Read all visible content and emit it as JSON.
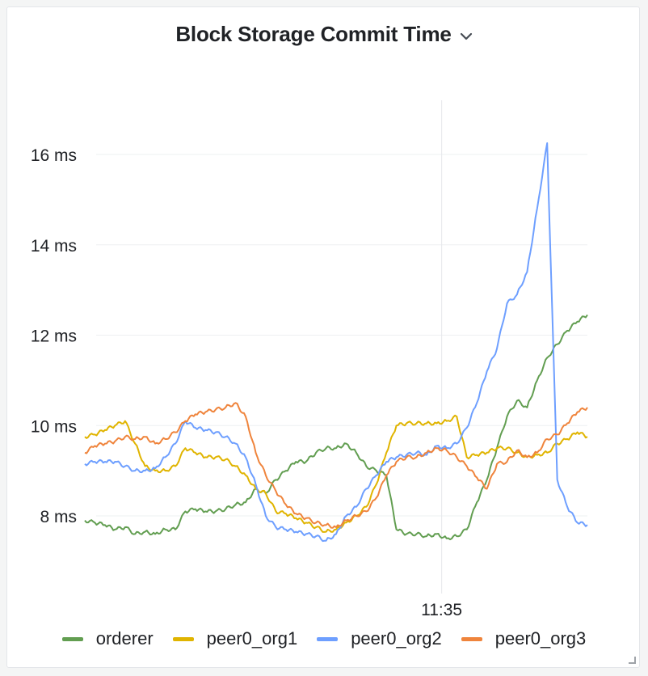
{
  "panel": {
    "title": "Block Storage Commit Time",
    "menu_icon": "chevron-down-icon",
    "resize_icon": "resize-handle-icon"
  },
  "chart_data": {
    "type": "line",
    "title": "Block Storage Commit Time",
    "xlabel": "",
    "ylabel": "",
    "y_unit": "ms",
    "yticks": [
      8,
      10,
      12,
      14,
      16
    ],
    "ytick_labels": [
      "8 ms",
      "10 ms",
      "12 ms",
      "14 ms",
      "16 ms"
    ],
    "ylim": [
      6.8,
      17.2
    ],
    "xlim": [
      0,
      100
    ],
    "xticks": [
      71
    ],
    "xtick_labels": [
      "11:35"
    ],
    "vertical_marker_x": 71,
    "grid": true,
    "legend_position": "bottom",
    "x": [
      0,
      2,
      4,
      6,
      8,
      10,
      12,
      14,
      16,
      18,
      20,
      22,
      24,
      26,
      28,
      30,
      32,
      34,
      36,
      38,
      40,
      42,
      44,
      46,
      48,
      50,
      52,
      54,
      56,
      58,
      60,
      62,
      64,
      66,
      68,
      70,
      72,
      74,
      76,
      78,
      80,
      82,
      84,
      86,
      88,
      90,
      92,
      94,
      96,
      98,
      100
    ],
    "series": [
      {
        "name": "orderer",
        "color": "#629e51",
        "values": [
          7.9,
          7.85,
          7.8,
          7.7,
          7.75,
          7.6,
          7.65,
          7.6,
          7.7,
          7.7,
          8.1,
          8.15,
          8.1,
          8.1,
          8.15,
          8.25,
          8.3,
          8.6,
          8.5,
          8.8,
          9.0,
          9.2,
          9.2,
          9.4,
          9.5,
          9.5,
          9.6,
          9.4,
          9.1,
          9.0,
          8.9,
          7.7,
          7.6,
          7.6,
          7.55,
          7.6,
          7.5,
          7.55,
          7.7,
          8.3,
          8.8,
          9.5,
          10.2,
          10.55,
          10.4,
          11.0,
          11.5,
          11.8,
          12.1,
          12.3,
          12.45
        ]
      },
      {
        "name": "peer0_org1",
        "color": "#e0b400",
        "values": [
          9.75,
          9.8,
          9.9,
          10.0,
          10.1,
          9.6,
          9.1,
          9.0,
          9.0,
          9.1,
          9.5,
          9.4,
          9.3,
          9.3,
          9.25,
          9.1,
          8.9,
          8.6,
          8.5,
          8.1,
          8.05,
          7.95,
          7.85,
          7.75,
          7.65,
          7.7,
          7.85,
          8.0,
          8.2,
          8.7,
          9.4,
          10.0,
          10.05,
          10.05,
          10.05,
          10.05,
          10.1,
          10.2,
          9.3,
          9.35,
          9.4,
          9.5,
          9.5,
          9.4,
          9.3,
          9.35,
          9.4,
          9.6,
          9.7,
          9.85,
          9.75
        ]
      },
      {
        "name": "peer0_org2",
        "color": "#6e9fff",
        "values": [
          9.15,
          9.2,
          9.2,
          9.2,
          9.1,
          9.0,
          9.0,
          9.05,
          9.3,
          9.6,
          10.1,
          9.95,
          9.9,
          9.85,
          9.75,
          9.6,
          9.3,
          8.7,
          8.0,
          7.75,
          7.7,
          7.65,
          7.6,
          7.55,
          7.45,
          7.6,
          8.0,
          8.2,
          8.6,
          8.9,
          9.2,
          9.3,
          9.35,
          9.4,
          9.35,
          9.55,
          9.5,
          9.6,
          9.95,
          10.5,
          11.2,
          11.7,
          12.7,
          12.9,
          13.4,
          14.8,
          16.25,
          8.8,
          8.2,
          7.85,
          7.8
        ]
      },
      {
        "name": "peer0_org3",
        "color": "#ef843c",
        "values": [
          9.4,
          9.55,
          9.6,
          9.65,
          9.75,
          9.7,
          9.75,
          9.6,
          9.7,
          9.85,
          10.1,
          10.25,
          10.3,
          10.35,
          10.4,
          10.5,
          10.2,
          9.4,
          8.9,
          8.55,
          8.25,
          8.05,
          7.95,
          7.85,
          7.8,
          7.75,
          7.9,
          8.0,
          8.1,
          8.4,
          8.9,
          9.2,
          9.3,
          9.3,
          9.4,
          9.5,
          9.45,
          9.3,
          9.1,
          8.85,
          8.6,
          9.15,
          9.2,
          9.45,
          9.3,
          9.4,
          9.7,
          9.8,
          10.05,
          10.3,
          10.4
        ]
      }
    ]
  }
}
